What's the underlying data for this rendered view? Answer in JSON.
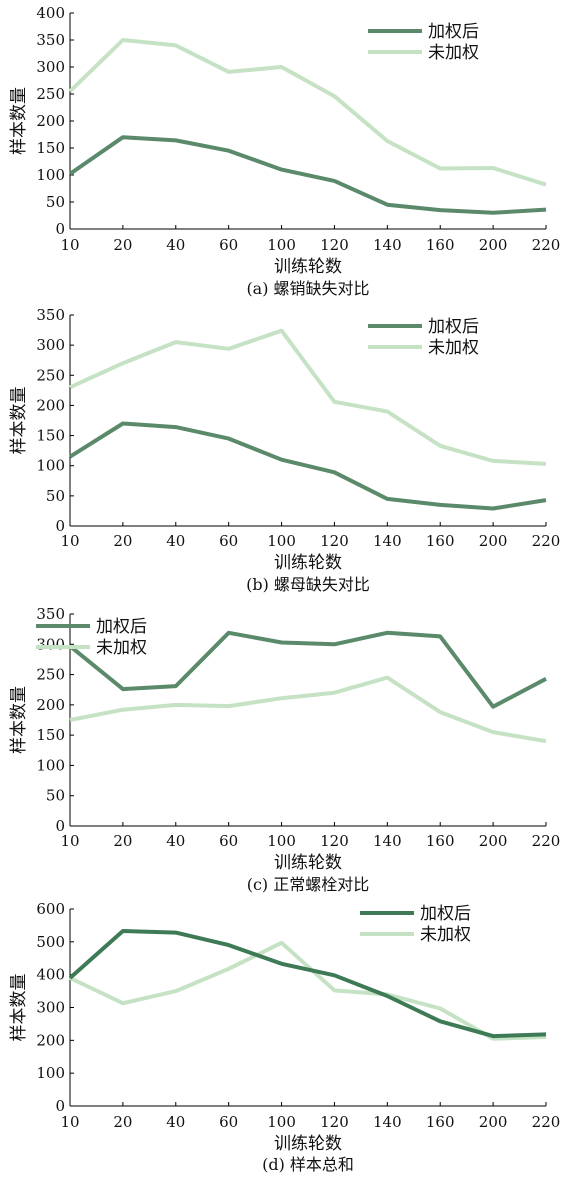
{
  "chart_data": [
    {
      "type": "line",
      "categories": [
        "10",
        "20",
        "40",
        "60",
        "100",
        "120",
        "140",
        "160",
        "200",
        "220"
      ],
      "ylim": [
        0,
        400
      ],
      "yticks": [
        0,
        50,
        100,
        150,
        200,
        250,
        300,
        350,
        400
      ],
      "xlabel": "训练轮数",
      "ylabel": "样本数量",
      "caption": "(a) 螺销缺失对比",
      "legend_position": "top-right",
      "series": [
        {
          "name": "加权后",
          "color": "#5a8a6a",
          "values": [
            102,
            170,
            164,
            145,
            110,
            89,
            45,
            35,
            30,
            36
          ]
        },
        {
          "name": "未加权",
          "color": "#c6e2c4",
          "values": [
            255,
            350,
            340,
            291,
            300,
            246,
            163,
            112,
            113,
            82
          ]
        }
      ]
    },
    {
      "type": "line",
      "categories": [
        "10",
        "20",
        "40",
        "60",
        "100",
        "120",
        "140",
        "160",
        "200",
        "220"
      ],
      "ylim": [
        0,
        350
      ],
      "yticks": [
        0,
        50,
        100,
        150,
        200,
        250,
        300,
        350
      ],
      "xlabel": "训练轮数",
      "ylabel": "样本数量",
      "caption": "(b) 螺母缺失对比",
      "legend_position": "top-right",
      "series": [
        {
          "name": "加权后",
          "color": "#5a8a6a",
          "values": [
            115,
            170,
            164,
            145,
            110,
            89,
            45,
            35,
            29,
            43
          ]
        },
        {
          "name": "未加权",
          "color": "#c6e2c4",
          "values": [
            230,
            270,
            305,
            294,
            324,
            206,
            190,
            133,
            108,
            103
          ]
        }
      ]
    },
    {
      "type": "line",
      "categories": [
        "10",
        "20",
        "40",
        "60",
        "100",
        "120",
        "140",
        "160",
        "200",
        "220"
      ],
      "ylim": [
        0,
        350
      ],
      "yticks": [
        0,
        50,
        100,
        150,
        200,
        250,
        300,
        350
      ],
      "xlabel": "训练轮数",
      "ylabel": "样本数量",
      "caption": "(c) 正常螺栓对比",
      "legend_position": "top-left",
      "series": [
        {
          "name": "加权后",
          "color": "#5a8a6a",
          "values": [
            297,
            226,
            231,
            319,
            303,
            300,
            319,
            313,
            197,
            243
          ]
        },
        {
          "name": "未加权",
          "color": "#c6e2c4",
          "values": [
            175,
            192,
            200,
            198,
            211,
            220,
            245,
            188,
            155,
            140
          ]
        }
      ]
    },
    {
      "type": "line",
      "categories": [
        "10",
        "20",
        "40",
        "60",
        "100",
        "120",
        "140",
        "160",
        "200",
        "220"
      ],
      "ylim": [
        0,
        600
      ],
      "yticks": [
        0,
        100,
        200,
        300,
        400,
        500,
        600
      ],
      "xlabel": "训练轮数",
      "ylabel": "样本数量",
      "caption": "(d) 样本总和",
      "legend_position": "top-right",
      "series": [
        {
          "name": "加权后",
          "color": "#3d7a55",
          "values": [
            390,
            533,
            528,
            490,
            433,
            398,
            335,
            258,
            213,
            218
          ]
        },
        {
          "name": "未加权",
          "color": "#c6e2c4",
          "values": [
            390,
            313,
            350,
            418,
            497,
            352,
            340,
            297,
            205,
            210
          ]
        }
      ]
    }
  ]
}
